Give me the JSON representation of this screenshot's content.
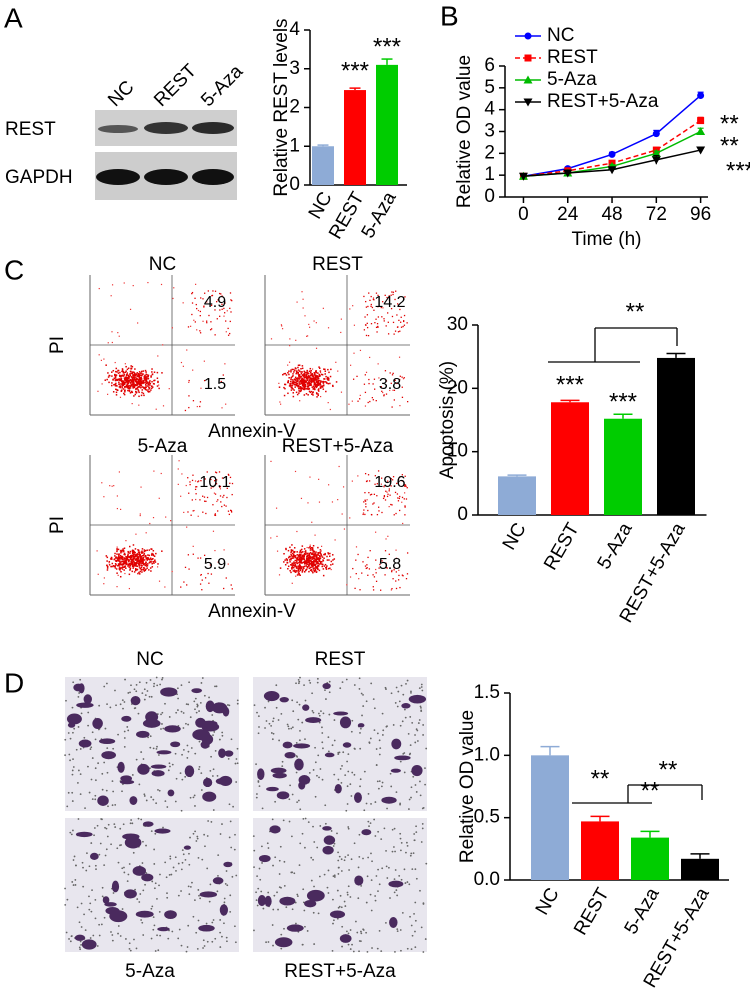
{
  "panel_labels": [
    "A",
    "B",
    "C",
    "D"
  ],
  "blot": {
    "lanes": [
      "NC",
      "REST",
      "5-Aza"
    ],
    "rows": [
      "REST",
      "GAPDH"
    ]
  },
  "flow": {
    "y_label": "PI",
    "x_label": "Annexin-V",
    "plots": [
      {
        "title": "NC",
        "upper_right": 4.9,
        "lower_right": 1.5
      },
      {
        "title": "REST",
        "upper_right": 14.2,
        "lower_right": 3.8
      },
      {
        "title": "5-Aza",
        "upper_right": 10.1,
        "lower_right": 5.9
      },
      {
        "title": "REST+5-Aza",
        "upper_right": 19.6,
        "lower_right": 5.8
      }
    ]
  },
  "micrographs": {
    "labels": [
      "NC",
      "REST",
      "5-Aza",
      "REST+5-Aza"
    ]
  },
  "chart_data": [
    {
      "type": "bar",
      "y_label": "Relative REST levels",
      "categories": [
        "NC",
        "REST",
        "5-Aza"
      ],
      "values": [
        1.0,
        2.45,
        3.1
      ],
      "errors": [
        0.03,
        0.05,
        0.15
      ],
      "colors": [
        "#8eabd6",
        "#ff0000",
        "#00cc00"
      ],
      "ylim": [
        0,
        4
      ],
      "yticks": [
        0,
        1,
        2,
        3,
        4
      ],
      "annotations": [
        "***",
        "***"
      ]
    },
    {
      "type": "line",
      "y_label": "Relative OD value",
      "x_label": "Time (h)",
      "x": [
        0,
        24,
        48,
        72,
        96
      ],
      "xlim": [
        -10,
        100
      ],
      "xticks": [
        0,
        24,
        48,
        72,
        96
      ],
      "ylim": [
        0,
        6
      ],
      "yticks": [
        0,
        1,
        2,
        3,
        4,
        5,
        6
      ],
      "legend": "top-left",
      "series": [
        {
          "name": "NC",
          "color": "#0000ff",
          "marker": "circle",
          "line_style": "solid",
          "values": [
            0.95,
            1.3,
            1.95,
            2.9,
            4.65
          ],
          "errors": [
            0.04,
            0.06,
            0.1,
            0.15,
            0.15
          ]
        },
        {
          "name": "REST",
          "color": "#ff0000",
          "marker": "square",
          "line_style": "dashed",
          "values": [
            0.95,
            1.2,
            1.55,
            2.15,
            3.5
          ],
          "errors": [
            0.04,
            0.05,
            0.08,
            0.1,
            0.15
          ]
        },
        {
          "name": "5-Aza",
          "color": "#00bb00",
          "marker": "triangle-up",
          "line_style": "solid",
          "values": [
            0.95,
            1.1,
            1.4,
            2.0,
            3.0
          ],
          "errors": [
            0.04,
            0.05,
            0.08,
            0.1,
            0.15
          ]
        },
        {
          "name": "REST+5-Aza",
          "color": "#000000",
          "marker": "triangle-down",
          "line_style": "solid",
          "values": [
            0.95,
            1.1,
            1.25,
            1.7,
            2.15
          ],
          "errors": [
            0.04,
            0.05,
            0.08,
            0.2,
            0.08
          ]
        }
      ],
      "annotations": [
        "**",
        "**",
        "***"
      ]
    },
    {
      "type": "bar",
      "y_label": "Apoptosis (%)",
      "categories": [
        "NC",
        "REST",
        "5-Aza",
        "REST+5-Aza"
      ],
      "values": [
        6.1,
        17.8,
        15.2,
        24.8
      ],
      "errors": [
        0.2,
        0.3,
        0.7,
        0.7
      ],
      "colors": [
        "#8eabd6",
        "#ff0000",
        "#00cc00",
        "#000000"
      ],
      "ylim": [
        0,
        30
      ],
      "yticks": [
        0,
        10,
        20,
        30
      ],
      "annotations": [
        "***",
        "***",
        "**"
      ]
    },
    {
      "type": "bar",
      "y_label": "Relative OD value",
      "categories": [
        "NC",
        "REST",
        "5-Aza",
        "REST+5-Aza"
      ],
      "values": [
        1.0,
        0.47,
        0.34,
        0.17
      ],
      "errors": [
        0.07,
        0.04,
        0.05,
        0.04
      ],
      "colors": [
        "#8eabd6",
        "#ff0000",
        "#00cc00",
        "#000000"
      ],
      "ylim": [
        0,
        1.5
      ],
      "yticks": [
        {
          "value": 0,
          "label": "0.0"
        },
        0.5,
        {
          "value": 1,
          "label": "1.0"
        },
        1.5
      ],
      "annotations": [
        "**",
        "**",
        "**"
      ]
    }
  ]
}
